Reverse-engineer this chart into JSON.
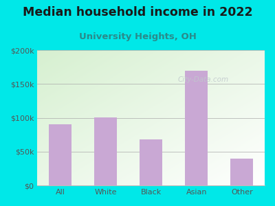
{
  "title": "Median household income in 2022",
  "subtitle": "University Heights, OH",
  "categories": [
    "All",
    "White",
    "Black",
    "Asian",
    "Other"
  ],
  "values": [
    90000,
    101000,
    68000,
    170000,
    40000
  ],
  "bar_color": "#c9a8d4",
  "background_outer": "#00e8e8",
  "background_inner_topleft": "#d6f0d0",
  "background_inner_bottomright": "#ffffff",
  "title_color": "#1a1a1a",
  "subtitle_color": "#2a8a8a",
  "tick_color": "#555555",
  "label_color": "#555555",
  "ylim": [
    0,
    200000
  ],
  "yticks": [
    0,
    50000,
    100000,
    150000,
    200000
  ],
  "ytick_labels": [
    "$0",
    "$50k",
    "$100k",
    "$150k",
    "$200k"
  ],
  "watermark": "City-Data.com",
  "title_fontsize": 12.5,
  "subtitle_fontsize": 9.5,
  "tick_fontsize": 8,
  "label_fontsize": 8,
  "bar_width": 0.5
}
